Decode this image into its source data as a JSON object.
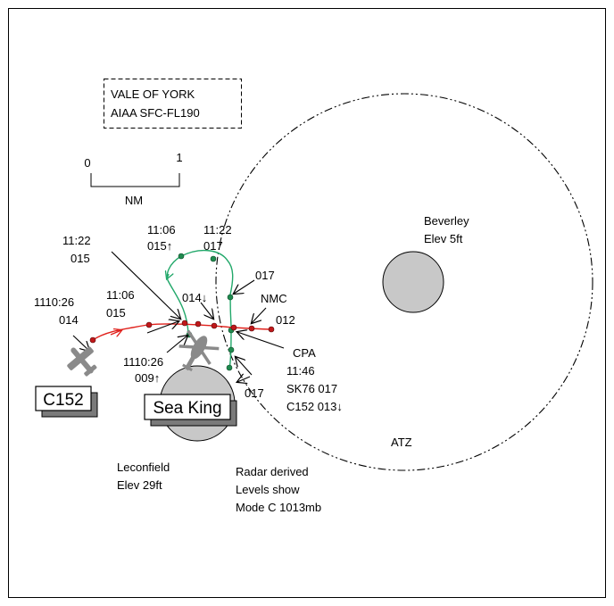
{
  "airspace_box": {
    "line1": "VALE OF YORK",
    "line2": "AIAA SFC-FL190"
  },
  "scale": {
    "start": "0",
    "end": "1",
    "unit": "NM"
  },
  "aerodromes": {
    "beverley": {
      "name": "Beverley",
      "elev": "Elev 5ft"
    },
    "leconfield": {
      "name": "Leconfield",
      "elev": "Elev 29ft"
    },
    "atz_label": "ATZ"
  },
  "aircraft": {
    "c152": {
      "tag": "C152"
    },
    "seaking": {
      "tag": "Sea King"
    }
  },
  "c152_track_labels": {
    "t1_time": "1110:26",
    "t1_level": "014",
    "t2_time": "11:06",
    "t2_level": "015",
    "t3_time": "11:22",
    "t3_level": "015",
    "end_level": "012",
    "nmc": "NMC"
  },
  "seaking_track_labels": {
    "t1_time": "1110:26",
    "t1_level": "009↑",
    "t2_time": "11:06",
    "t2_level": "015↑",
    "t3_time": "11:22",
    "t3_level": "017",
    "l_017a": "017",
    "l_014": "014↓",
    "l_017b": "017"
  },
  "cpa": {
    "title": "CPA",
    "time": "11:46",
    "sk": "SK76 017",
    "c152": "C152 013↓"
  },
  "note": {
    "line1": "Radar derived",
    "line2": "Levels show",
    "line3": "Mode C 1013mb"
  },
  "colors": {
    "c152_track": "#e0201b",
    "c152_dot": "#c0181a",
    "seaking_track": "#22a86a",
    "seaking_dot": "#1f8a4e",
    "aerodrome_fill": "#c8c8c8",
    "aircraft_gray": "#8a8a8a"
  }
}
